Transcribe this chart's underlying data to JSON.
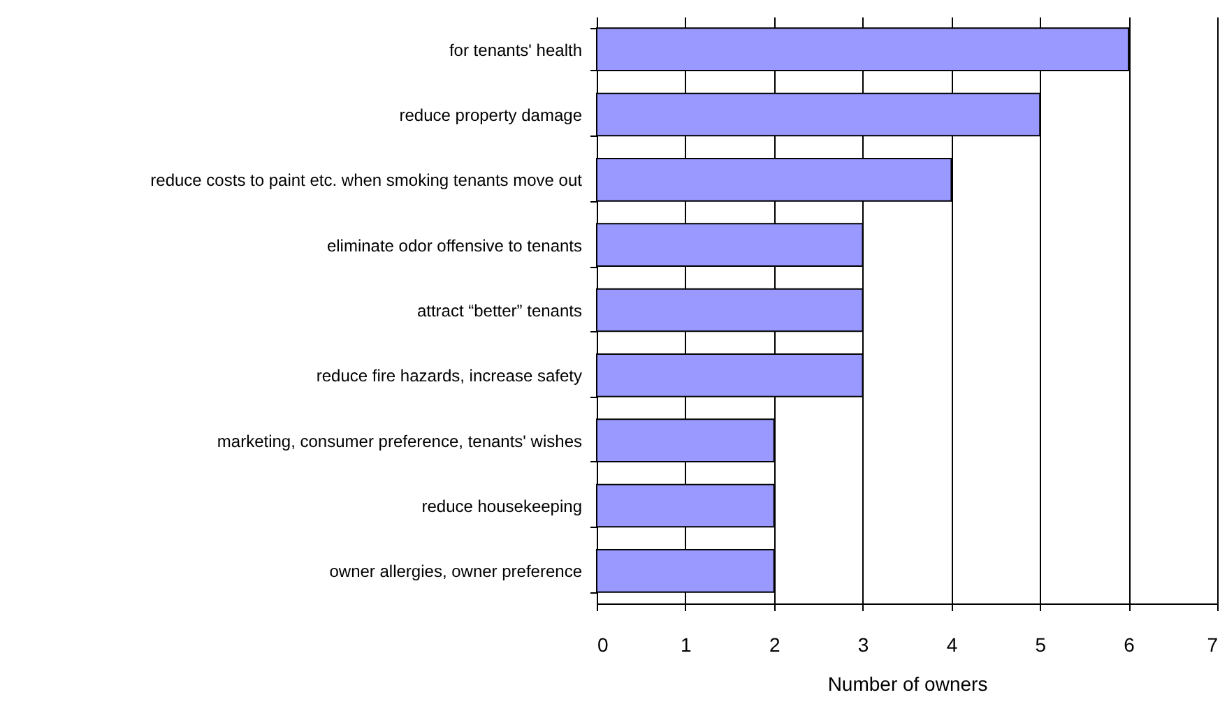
{
  "chart_data": {
    "type": "bar",
    "orientation": "horizontal",
    "xlabel": "Number of owners",
    "categories": [
      "for tenants' health",
      "reduce property damage",
      "reduce costs to paint etc. when smoking tenants move out",
      "eliminate odor offensive to tenants",
      "attract “better” tenants",
      "reduce fire hazards, increase safety",
      "marketing, consumer preference, tenants' wishes",
      "reduce housekeeping",
      "owner allergies, owner preference"
    ],
    "values": [
      6,
      5,
      4,
      3,
      3,
      3,
      2,
      2,
      2
    ],
    "color": "#9999ff",
    "xlim": [
      0,
      7
    ],
    "xticks": [
      0,
      1,
      2,
      3,
      4,
      5,
      6,
      7
    ],
    "grid": "x"
  }
}
